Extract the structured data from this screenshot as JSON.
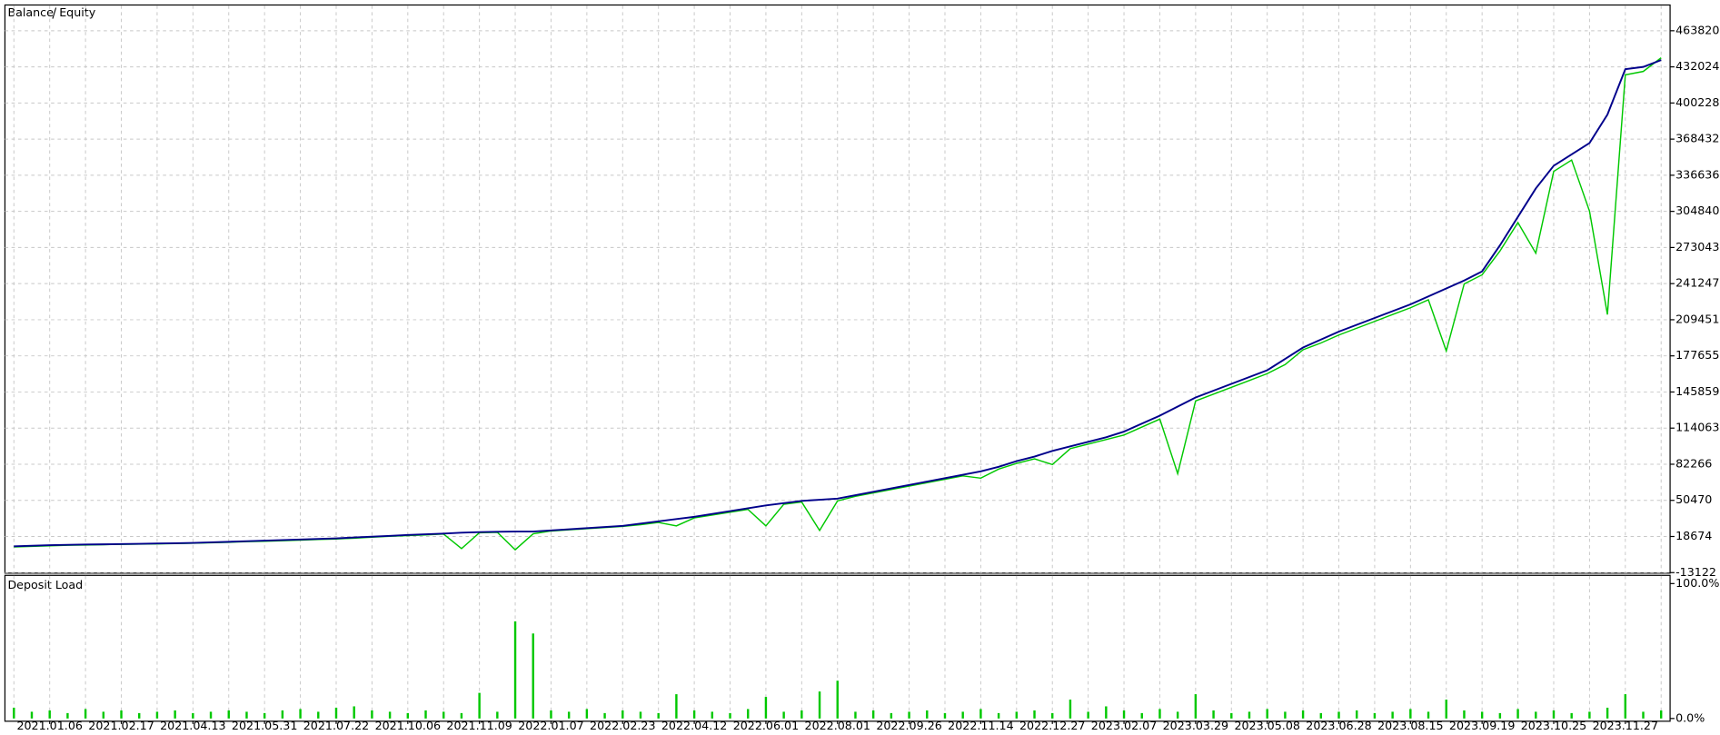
{
  "chart_data": [
    {
      "type": "line",
      "ylim": [
        -13122,
        486000
      ],
      "yticks": [
        -13122,
        18674,
        50470,
        82266,
        114063,
        145859,
        177655,
        209451,
        241247,
        273043,
        304840,
        336636,
        368432,
        400228,
        432024,
        463820
      ],
      "grid": true,
      "series": [
        {
          "name": "Balance",
          "color": "#00008b",
          "values": [
            10000,
            10500,
            11000,
            11300,
            11600,
            11800,
            12000,
            12200,
            12500,
            12700,
            13000,
            13500,
            14000,
            14500,
            15000,
            15500,
            16000,
            16500,
            17000,
            17800,
            18500,
            19200,
            20000,
            20600,
            21200,
            22000,
            22500,
            22800,
            23000,
            23000,
            24000,
            25000,
            26000,
            27000,
            28000,
            30000,
            32000,
            34000,
            36000,
            38500,
            41000,
            43500,
            46000,
            48000,
            50000,
            51000,
            52000,
            55000,
            58000,
            61000,
            64000,
            67000,
            70000,
            73000,
            76000,
            80000,
            85000,
            89000,
            94000,
            98000,
            102000,
            106000,
            111000,
            118000,
            125000,
            133000,
            141000,
            147000,
            153000,
            159000,
            165000,
            175000,
            185000,
            192000,
            199000,
            205000,
            211000,
            217000,
            223000,
            230000,
            237000,
            244000,
            252000,
            275000,
            300000,
            325000,
            345000,
            355000,
            365000,
            390000,
            430000,
            432000,
            438000
          ]
        },
        {
          "name": "Equity",
          "color": "#00c800",
          "values": [
            9500,
            10000,
            10500,
            11000,
            11200,
            11500,
            11800,
            12000,
            12200,
            12500,
            12800,
            13200,
            13600,
            14200,
            14500,
            15000,
            15500,
            16000,
            16500,
            17200,
            18000,
            18800,
            19500,
            20000,
            20800,
            8000,
            22000,
            22400,
            7000,
            21000,
            23500,
            24500,
            25500,
            26500,
            27500,
            29000,
            31000,
            28000,
            35000,
            37500,
            40000,
            42500,
            28000,
            47000,
            49000,
            24000,
            50000,
            54000,
            57000,
            60000,
            63000,
            66000,
            69000,
            72000,
            70000,
            78000,
            83000,
            87000,
            82000,
            96000,
            100000,
            104000,
            108000,
            115000,
            122000,
            74000,
            138000,
            144000,
            150000,
            156000,
            162000,
            170000,
            183000,
            189000,
            196000,
            202000,
            208000,
            214000,
            220000,
            227000,
            182000,
            241000,
            249000,
            270000,
            295000,
            268000,
            340000,
            350000,
            305000,
            214000,
            425000,
            428000,
            440000
          ]
        }
      ]
    },
    {
      "type": "bar",
      "title": "Deposit Load",
      "color": "#00c800",
      "ylim": [
        0,
        100
      ],
      "yticks": [
        {
          "value": 0,
          "label": "0.0%"
        },
        {
          "value": 100,
          "label": "100.0%"
        }
      ],
      "categories": [
        null,
        null,
        "2021.01.06",
        null,
        null,
        null,
        "2021.02.17",
        null,
        null,
        null,
        "2021.04.13",
        null,
        null,
        null,
        "2021.05.31",
        null,
        null,
        null,
        "2021.07.22",
        null,
        null,
        null,
        "2021.10.06",
        null,
        null,
        null,
        "2021.11.09",
        null,
        null,
        null,
        "2022.01.07",
        null,
        null,
        null,
        "2022.02.23",
        null,
        null,
        null,
        "2022.04.12",
        null,
        null,
        null,
        "2022.06.01",
        null,
        null,
        null,
        "2022.08.01",
        null,
        null,
        null,
        "2022.09.26",
        null,
        null,
        null,
        "2022.11.14",
        null,
        null,
        null,
        "2022.12.27",
        null,
        null,
        null,
        "2023.02.07",
        null,
        null,
        null,
        "2023.03.29",
        null,
        null,
        null,
        "2023.05.08",
        null,
        null,
        null,
        "2023.06.28",
        null,
        null,
        null,
        "2023.08.15",
        null,
        null,
        null,
        "2023.09.19",
        null,
        null,
        null,
        "2023.10.25",
        null,
        null,
        null,
        "2023.11.27",
        null,
        null
      ],
      "values": [
        8,
        5,
        6,
        4,
        7,
        5,
        6,
        4,
        5,
        6,
        4,
        5,
        6,
        5,
        4,
        6,
        7,
        5,
        8,
        9,
        6,
        5,
        4,
        6,
        5,
        4,
        19,
        5,
        72,
        63,
        6,
        5,
        7,
        4,
        6,
        5,
        4,
        18,
        6,
        5,
        4,
        7,
        16,
        5,
        6,
        20,
        28,
        5,
        6,
        4,
        5,
        6,
        4,
        5,
        7,
        4,
        5,
        6,
        4,
        14,
        5,
        9,
        6,
        4,
        7,
        5,
        18,
        6,
        4,
        5,
        7,
        5,
        6,
        4,
        5,
        6,
        4,
        5,
        7,
        5,
        14,
        6,
        5,
        4,
        7,
        5,
        6,
        4,
        5,
        8,
        18,
        5,
        6
      ]
    }
  ]
}
